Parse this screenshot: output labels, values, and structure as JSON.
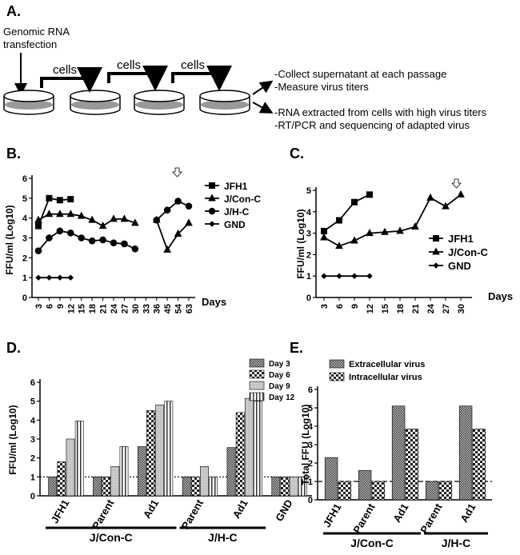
{
  "diagram": {
    "title": "A.",
    "transfection_label": [
      "Genomic RNA",
      "transfection"
    ],
    "step_labels": [
      "cells",
      "cells",
      "cells"
    ],
    "notes": [
      "-Collect supernatant at each passage",
      "-Measure virus titers",
      "-RNA extracted from cells with high virus titers",
      "-RT/PCR and sequencing of adapted virus"
    ]
  },
  "chart_data": [
    {
      "type": "line",
      "title": "B.",
      "y_label": "FFU/ml (Log10)",
      "x_label": "Days",
      "categories": [
        "3",
        "6",
        "9",
        "12",
        "15",
        "18",
        "21",
        "24",
        "27",
        "30",
        "33",
        "36",
        "45",
        "54",
        "63"
      ],
      "ylim": [
        0,
        6
      ],
      "yticks": [
        0,
        1,
        2,
        3,
        4,
        5,
        6
      ],
      "series": [
        {
          "name": "JFH1",
          "color": "#000000",
          "marker": "square",
          "values": [
            3.6,
            5.0,
            4.9,
            4.95,
            null,
            null,
            null,
            null,
            null,
            null,
            null,
            null,
            null,
            null,
            null
          ]
        },
        {
          "name": "J/Con-C",
          "color": "#000000",
          "marker": "triangle",
          "values": [
            3.9,
            4.2,
            4.2,
            4.2,
            4.1,
            3.9,
            3.6,
            3.95,
            3.95,
            3.75,
            null,
            3.9,
            2.4,
            3.2,
            3.75
          ]
        },
        {
          "name": "J/H-C",
          "color": "#000000",
          "marker": "circle",
          "values": [
            2.35,
            3.0,
            3.35,
            3.25,
            3.0,
            2.85,
            2.9,
            2.75,
            2.7,
            2.45,
            null,
            3.9,
            4.4,
            4.85,
            4.6
          ]
        },
        {
          "name": "GND",
          "color": "#000000",
          "marker": "diamond",
          "values": [
            1,
            1,
            1,
            1,
            null,
            null,
            null,
            null,
            null,
            null,
            null,
            null,
            null,
            null,
            null
          ]
        }
      ]
    },
    {
      "type": "line",
      "title": "C.",
      "y_label": "FFU/ml (Log10)",
      "x_label": "Days",
      "categories": [
        "3",
        "6",
        "9",
        "12",
        "15",
        "18",
        "21",
        "24",
        "27",
        "30"
      ],
      "ylim": [
        0,
        5
      ],
      "yticks": [
        0,
        1,
        2,
        3,
        4,
        5
      ],
      "series": [
        {
          "name": "JFH1",
          "color": "#000000",
          "marker": "square",
          "values": [
            3.1,
            3.6,
            4.45,
            4.8,
            null,
            null,
            null,
            null,
            null,
            null
          ]
        },
        {
          "name": "J/Con-C",
          "color": "#000000",
          "marker": "triangle",
          "values": [
            2.8,
            2.4,
            2.65,
            3.0,
            3.05,
            3.1,
            3.3,
            4.65,
            4.25,
            4.8
          ]
        },
        {
          "name": "GND",
          "color": "#000000",
          "marker": "diamond",
          "values": [
            1,
            1,
            1,
            1,
            null,
            null,
            null,
            null,
            null,
            null
          ]
        }
      ]
    },
    {
      "type": "bar",
      "title": "D.",
      "y_label": "FFU/ml (Log10)",
      "categories": [
        "JFH1",
        "Parent",
        "Ad1",
        "Parent",
        "Ad1",
        "GND"
      ],
      "groups": [
        "J/Con-C",
        "J/H-C"
      ],
      "ylim": [
        0,
        6
      ],
      "yticks": [
        0,
        1,
        2,
        3,
        4,
        5,
        6
      ],
      "reference_line": 1,
      "series": [
        {
          "name": "Day 3",
          "pattern": "checker",
          "values": [
            1,
            1,
            2.6,
            1,
            2.55,
            1
          ]
        },
        {
          "name": "Day 6",
          "pattern": "cross",
          "values": [
            1.8,
            1,
            4.5,
            1,
            4.4,
            1
          ]
        },
        {
          "name": "Day 9",
          "pattern": "gray",
          "values": [
            3.0,
            1.55,
            4.8,
            1.55,
            5.15,
            1
          ]
        },
        {
          "name": "Day 12",
          "pattern": "vstripe",
          "values": [
            3.95,
            2.6,
            5.0,
            1,
            5.0,
            1
          ]
        }
      ]
    },
    {
      "type": "bar",
      "title": "E.",
      "y_label": "Total FFU (Log10)",
      "categories": [
        "JFH1",
        "Parent",
        "Ad1",
        "Parent",
        "Ad1"
      ],
      "groups": [
        "J/Con-C",
        "J/H-C"
      ],
      "ylim": [
        0,
        6
      ],
      "yticks": [
        0,
        1,
        2,
        3,
        4,
        5,
        6
      ],
      "reference_line": 1,
      "series": [
        {
          "name": "Extracellular virus",
          "pattern": "checker",
          "values": [
            2.3,
            1.6,
            5.1,
            1,
            5.1
          ]
        },
        {
          "name": "Intracellular virus",
          "pattern": "cross",
          "values": [
            1,
            1,
            3.85,
            1,
            3.85
          ]
        }
      ]
    }
  ]
}
